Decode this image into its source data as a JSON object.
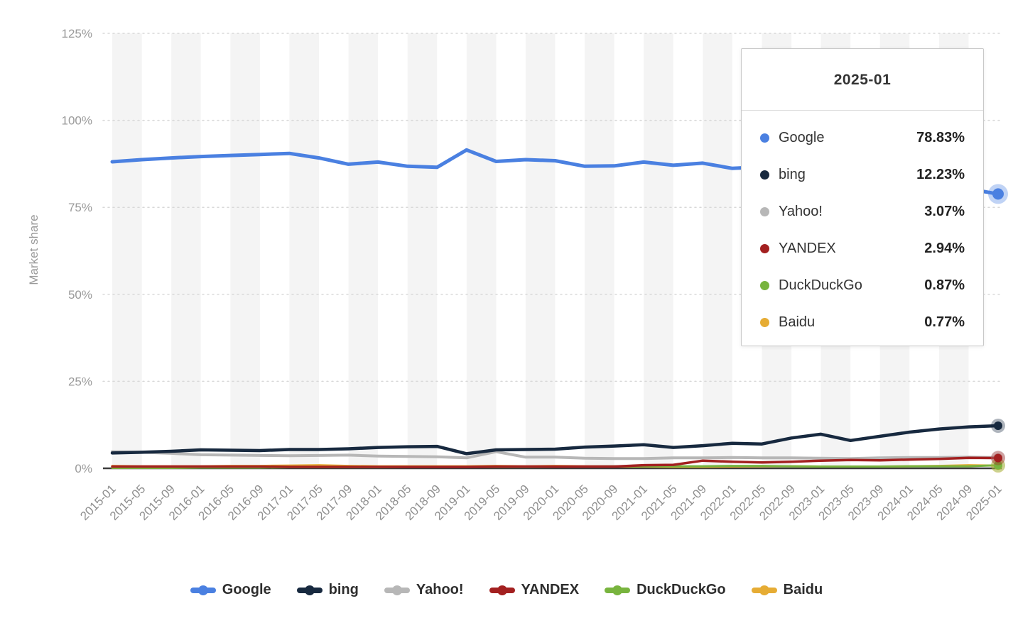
{
  "chart_data": {
    "type": "line",
    "title": "",
    "xlabel": "",
    "ylabel": "Market share",
    "ylim": [
      0,
      125
    ],
    "yticks": [
      0,
      25,
      50,
      75,
      100,
      125
    ],
    "ytick_labels": [
      "0%",
      "25%",
      "50%",
      "75%",
      "100%",
      "125%"
    ],
    "grid": "horizontal-dotted",
    "legend_position": "bottom",
    "sampling": "values estimated at 4-month tick intervals",
    "x": [
      "2015-01",
      "2015-05",
      "2015-09",
      "2016-01",
      "2016-05",
      "2016-09",
      "2017-01",
      "2017-05",
      "2017-09",
      "2018-01",
      "2018-05",
      "2018-09",
      "2019-01",
      "2019-05",
      "2019-09",
      "2020-01",
      "2020-05",
      "2020-09",
      "2021-01",
      "2021-05",
      "2021-09",
      "2022-01",
      "2022-05",
      "2022-09",
      "2023-01",
      "2023-05",
      "2023-09",
      "2024-01",
      "2024-05",
      "2024-09",
      "2025-01"
    ],
    "series": [
      {
        "name": "Google",
        "color": "#4a80e1",
        "values": [
          88.1,
          88.7,
          89.2,
          89.6,
          89.9,
          90.2,
          90.5,
          89.2,
          87.4,
          88.0,
          86.8,
          86.5,
          91.5,
          88.2,
          88.7,
          88.4,
          86.8,
          86.9,
          88.0,
          87.1,
          87.7,
          86.2,
          86.6,
          86.2,
          86.0,
          85.5,
          85.2,
          84.2,
          81.0,
          80.3,
          78.83
        ]
      },
      {
        "name": "bing",
        "color": "#17293f",
        "values": [
          4.4,
          4.6,
          4.9,
          5.3,
          5.2,
          5.1,
          5.4,
          5.4,
          5.6,
          6.0,
          6.2,
          6.3,
          4.2,
          5.3,
          5.4,
          5.5,
          6.1,
          6.4,
          6.8,
          6.0,
          6.5,
          7.2,
          7.0,
          8.7,
          9.8,
          8.0,
          9.2,
          10.4,
          11.3,
          11.9,
          12.23
        ]
      },
      {
        "name": "Yahoo!",
        "color": "#b7b7b7",
        "values": [
          4.8,
          4.6,
          4.3,
          3.9,
          3.8,
          3.7,
          3.6,
          3.7,
          3.8,
          3.5,
          3.4,
          3.3,
          3.0,
          4.8,
          3.2,
          3.2,
          2.9,
          2.8,
          2.8,
          3.0,
          3.0,
          3.1,
          3.0,
          3.0,
          2.9,
          2.8,
          3.0,
          3.1,
          3.1,
          3.2,
          3.07
        ]
      },
      {
        "name": "YANDEX",
        "color": "#a32020",
        "values": [
          0.5,
          0.5,
          0.5,
          0.5,
          0.5,
          0.5,
          0.4,
          0.4,
          0.4,
          0.4,
          0.4,
          0.4,
          0.4,
          0.5,
          0.5,
          0.5,
          0.5,
          0.5,
          0.9,
          1.0,
          2.2,
          1.9,
          1.7,
          1.9,
          2.2,
          2.4,
          2.3,
          2.5,
          2.7,
          3.0,
          2.94
        ]
      },
      {
        "name": "DuckDuckGo",
        "color": "#78b43e",
        "values": [
          0.1,
          0.1,
          0.1,
          0.2,
          0.2,
          0.2,
          0.3,
          0.3,
          0.3,
          0.3,
          0.4,
          0.4,
          0.4,
          0.4,
          0.4,
          0.5,
          0.5,
          0.6,
          0.6,
          0.6,
          0.6,
          0.7,
          0.7,
          0.6,
          0.5,
          0.5,
          0.5,
          0.6,
          0.6,
          0.6,
          0.87
        ]
      },
      {
        "name": "Baidu",
        "color": "#e6ac34",
        "values": [
          0.7,
          0.6,
          0.6,
          0.6,
          0.7,
          0.7,
          0.8,
          0.9,
          0.7,
          0.6,
          0.6,
          0.6,
          0.6,
          0.7,
          0.6,
          0.7,
          0.6,
          0.5,
          0.5,
          0.4,
          0.4,
          0.5,
          0.6,
          0.6,
          0.5,
          0.5,
          0.5,
          0.6,
          0.7,
          0.9,
          0.77
        ]
      }
    ]
  },
  "tooltip": {
    "title": "2025-01",
    "rows": [
      {
        "name": "Google",
        "value": "78.83%"
      },
      {
        "name": "bing",
        "value": "12.23%"
      },
      {
        "name": "Yahoo!",
        "value": "3.07%"
      },
      {
        "name": "YANDEX",
        "value": "2.94%"
      },
      {
        "name": "DuckDuckGo",
        "value": "0.87%"
      },
      {
        "name": "Baidu",
        "value": "0.77%"
      }
    ]
  },
  "legend": {
    "items": [
      "Google",
      "bing",
      "Yahoo!",
      "YANDEX",
      "DuckDuckGo",
      "Baidu"
    ]
  }
}
